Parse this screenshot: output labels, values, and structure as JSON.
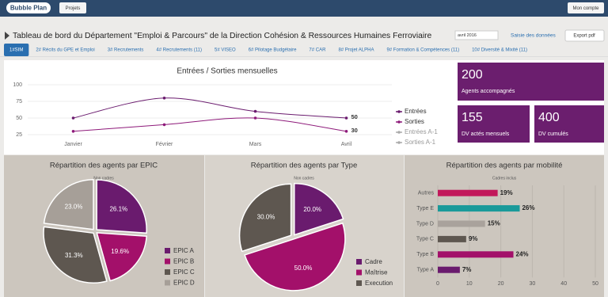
{
  "header": {
    "logo": "Bubble Plan",
    "projects": "Projets",
    "account": "Mon compte"
  },
  "title": "Tableau de bord du Département \"Emploi & Parcours\" de la Direction Cohésion & Ressources Humaines Ferroviaire",
  "period": "avril 2016",
  "data_entry": "Saisie des données",
  "export": "Export pdf",
  "tabs": [
    "1#SIM",
    "2# Récits du GPE et Emploi",
    "3# Recrutements",
    "4# Recrutements (11)",
    "5# VISEO",
    "6# Pilotage Budgétaire",
    "7# CAR",
    "8# Projet ALPHA",
    "9# Formation & Compétences (11)",
    "10# Diversité & Mixité (11)"
  ],
  "kpis": [
    {
      "value": 200,
      "label": "Agents accompagnés"
    },
    {
      "value": 155,
      "label": "DV actés mensuels"
    },
    {
      "value": 400,
      "label": "DV cumulés"
    }
  ],
  "chart_data": [
    {
      "type": "line",
      "title": "Entrées / Sorties mensuelles",
      "categories": [
        "Janvier",
        "Février",
        "Mars",
        "Avril"
      ],
      "series": [
        {
          "name": "Entrées",
          "color": "#6a1b6e",
          "values": [
            50,
            80,
            60,
            50
          ]
        },
        {
          "name": "Sorties",
          "color": "#8e1a7a",
          "values": [
            30,
            40,
            50,
            30
          ]
        },
        {
          "name": "Entrées A-1",
          "color": "#aaaaaa",
          "values": [
            null,
            null,
            null,
            null
          ]
        },
        {
          "name": "Sorties A-1",
          "color": "#aaaaaa",
          "values": [
            null,
            null,
            null,
            null
          ]
        }
      ],
      "ylim": [
        25,
        100
      ],
      "yticks": [
        25,
        50,
        75,
        100
      ],
      "grid": true,
      "legend": "right",
      "data_labels": "last"
    },
    {
      "type": "pie",
      "title": "Répartition des agents par EPIC",
      "subtitle": "Non cadres",
      "categories": [
        "EPIC A",
        "EPIC B",
        "EPIC C",
        "EPIC D"
      ],
      "values": [
        26.1,
        19.6,
        31.3,
        23.0
      ],
      "value_labels": [
        "26.1%",
        "19.6%",
        "31.3%",
        "23.0%"
      ],
      "colors": [
        "#6a1b6e",
        "#a3106a",
        "#5e5750",
        "#a69f98"
      ]
    },
    {
      "type": "pie",
      "title": "Répartition des agents par Type",
      "subtitle": "Non cadres",
      "categories": [
        "Cadre",
        "Maîtrise",
        "Execution"
      ],
      "values": [
        20.0,
        50.0,
        30.0
      ],
      "value_labels": [
        "20.0%",
        "50.0%",
        "30.0%"
      ],
      "colors": [
        "#6a1b6e",
        "#a3106a",
        "#5e5750"
      ]
    },
    {
      "type": "hbar",
      "title": "Répartition des agents par mobilité",
      "subtitle": "Cadres inclus",
      "categories": [
        "Autres",
        "Type E",
        "Type D",
        "Type C",
        "Type B",
        "Type A"
      ],
      "values": [
        19,
        26,
        15,
        9,
        24,
        7
      ],
      "value_labels": [
        "19%",
        "26%",
        "15%",
        "9%",
        "24%",
        "7%"
      ],
      "colors": [
        "#c2185b",
        "#1a9a9a",
        "#a9a29c",
        "#5e5750",
        "#a3106a",
        "#6a1b6e"
      ],
      "xlim": [
        0,
        50
      ],
      "xticks": [
        0,
        10,
        20,
        30,
        40,
        50
      ],
      "grid": true
    }
  ]
}
